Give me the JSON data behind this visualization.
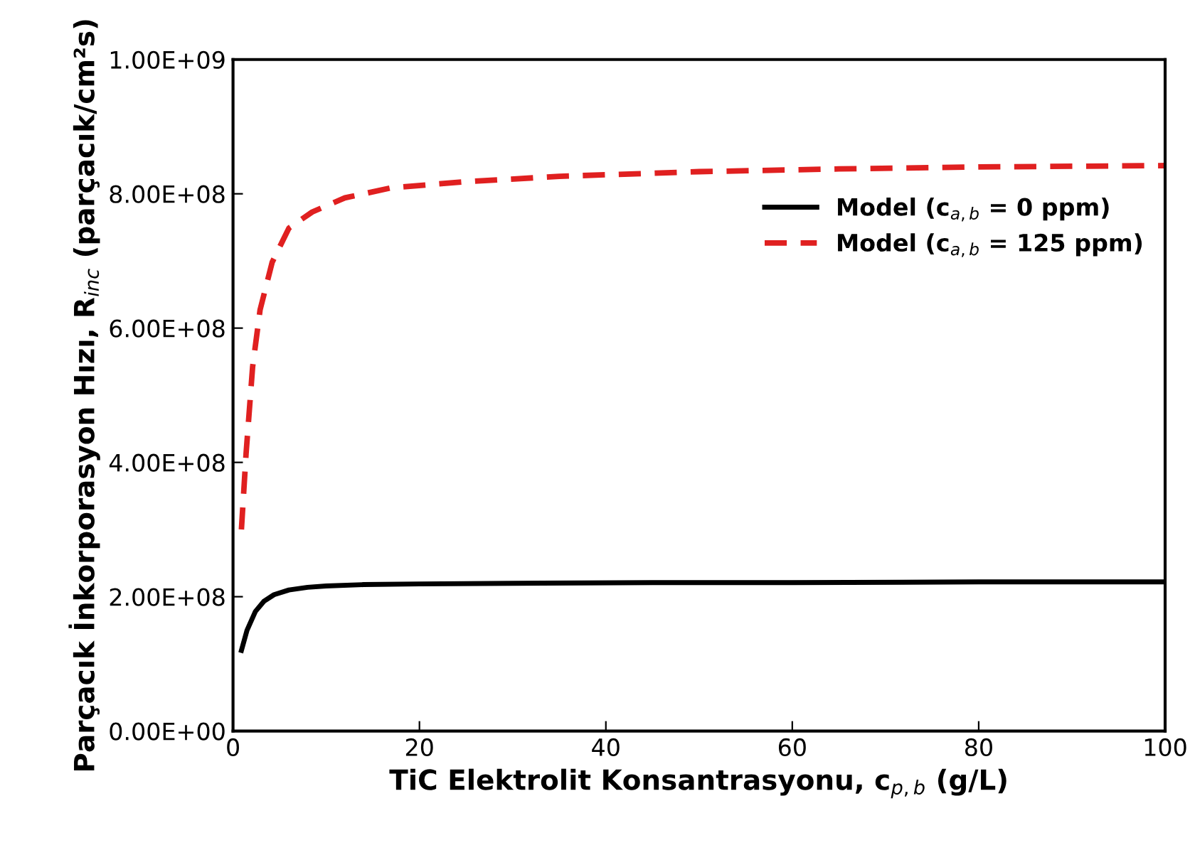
{
  "chart_data": {
    "type": "line",
    "xlabel": "TiC Elektrolit Konsantrasyonu, c$_{p,b}$ (g/L)",
    "ylabel": "Parçacık İnkorporasyon Hızı, R$_{inc}$ (parçacık/cm²s)",
    "xlim": [
      0,
      100
    ],
    "xticks": [
      0,
      20,
      40,
      60,
      80,
      100
    ],
    "ylim": [
      0,
      1000000000
    ],
    "yticks": [
      {
        "value": 0,
        "label": "0.00E+00"
      },
      {
        "value": 200000000,
        "label": "2.00E+08"
      },
      {
        "value": 400000000,
        "label": "4.00E+08"
      },
      {
        "value": 600000000,
        "label": "6.00E+08"
      },
      {
        "value": 800000000,
        "label": "8.00E+08"
      },
      {
        "value": 1000000000,
        "label": "1.00E+09"
      }
    ],
    "grid": false,
    "legend": "right",
    "marker": "none",
    "series": [
      {
        "name": "Model (c$_{a,b}$ = 0 ppm)",
        "color": "#000000",
        "line_style": "solid",
        "x": [
          0.9,
          1.5,
          2.4,
          3.3,
          4.4,
          6.0,
          8.0,
          10,
          14,
          20,
          30,
          45,
          60,
          80,
          100
        ],
        "values": [
          120000000,
          150000000,
          178000000,
          193000000,
          203000000,
          210000000,
          214000000,
          216000000,
          218000000,
          219000000,
          220000000,
          221000000,
          221000000,
          222000000,
          222000000
        ]
      },
      {
        "name": "Model (c$_{a,b}$ = 125 ppm)",
        "color": "#e02020",
        "line_style": "dashed",
        "x": [
          0.9,
          1.4,
          2.1,
          2.9,
          4.2,
          6.0,
          8.5,
          12,
          17,
          25,
          35,
          50,
          65,
          80,
          100
        ],
        "values": [
          300000000,
          413000000,
          542000000,
          627000000,
          698000000,
          749000000,
          773000000,
          794000000,
          809000000,
          818000000,
          826000000,
          833000000,
          837000000,
          840000000,
          842000000
        ]
      }
    ]
  }
}
